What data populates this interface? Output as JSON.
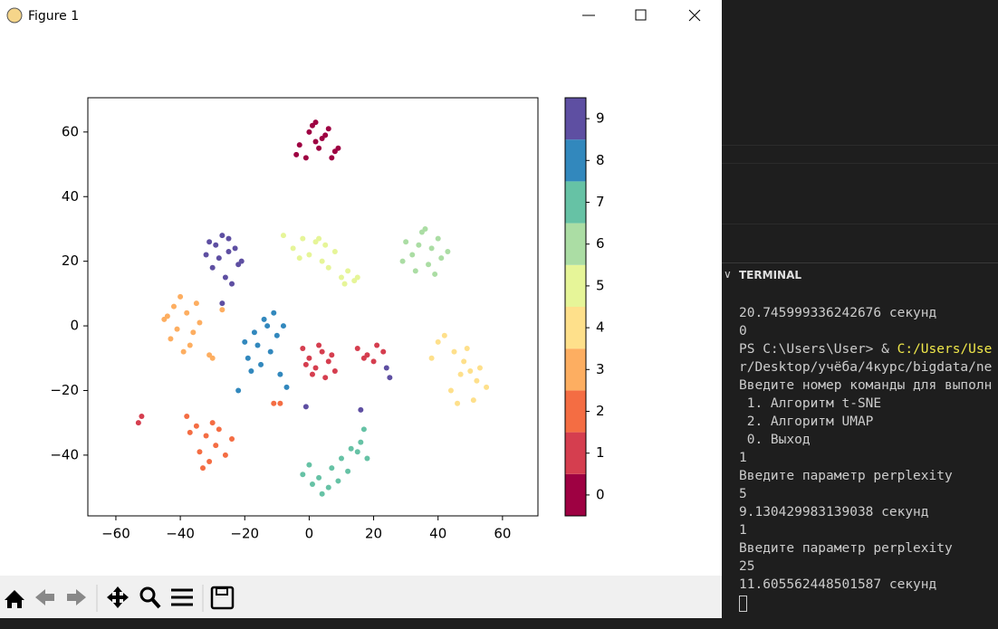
{
  "window": {
    "title": "Figure 1"
  },
  "chart_data": {
    "type": "scatter",
    "xlim": [
      -68.7,
      71
    ],
    "ylim": [
      -58.8,
      70.6
    ],
    "xticks": [
      {
        "value": -60,
        "label": "−60"
      },
      {
        "value": -40,
        "label": "−40"
      },
      {
        "value": -20,
        "label": "−20"
      },
      0,
      20,
      40,
      60
    ],
    "yticks": [
      {
        "value": -40,
        "label": "−40"
      },
      {
        "value": -20,
        "label": "−20"
      },
      0,
      20,
      40,
      60
    ],
    "colorbar": {
      "lim": [
        -0.5,
        9.5
      ],
      "ticks": [
        0,
        1,
        2,
        3,
        4,
        5,
        6,
        7,
        8,
        9
      ]
    },
    "series": [
      {
        "color": "#9e0142",
        "x": [
          -3,
          0,
          2,
          4,
          6,
          8,
          -1,
          3,
          5,
          7,
          1,
          -4,
          9,
          2
        ],
        "y": [
          56,
          60,
          63,
          58,
          61,
          54,
          52,
          55,
          59,
          52,
          62,
          53,
          55,
          57
        ]
      },
      {
        "color": "#d53e4f",
        "x": [
          -2,
          0,
          2,
          4,
          6,
          8,
          -1,
          3,
          7,
          1,
          5,
          15,
          18,
          21,
          23,
          17,
          20,
          -52,
          -53
        ],
        "y": [
          -7,
          -10,
          -13,
          -8,
          -11,
          -14,
          -12,
          -6,
          -9,
          -15,
          -16,
          -7,
          -9,
          -6,
          -8,
          -10,
          -11,
          -28,
          -30
        ]
      },
      {
        "color": "#f46d43",
        "x": [
          -38,
          -35,
          -32,
          -29,
          -26,
          -24,
          -37,
          -34,
          -31,
          -28,
          -33,
          -30,
          -11,
          -9
        ],
        "y": [
          -28,
          -31,
          -34,
          -37,
          -40,
          -35,
          -33,
          -39,
          -42,
          -32,
          -44,
          -30,
          -24,
          -24
        ]
      },
      {
        "color": "#fdae61",
        "x": [
          -45,
          -42,
          -40,
          -38,
          -36,
          -34,
          -43,
          -39,
          -37,
          -41,
          -44,
          -35,
          -31,
          -30,
          -27
        ],
        "y": [
          2,
          6,
          9,
          4,
          -2,
          1,
          -4,
          -8,
          -6,
          -1,
          3,
          7,
          -9,
          -10,
          5
        ]
      },
      {
        "color": "#fee08b",
        "x": [
          40,
          42,
          45,
          48,
          50,
          52,
          55,
          38,
          44,
          47,
          51,
          53,
          46,
          49
        ],
        "y": [
          -5,
          -3,
          -8,
          -11,
          -14,
          -17,
          -19,
          -10,
          -20,
          -15,
          -23,
          -13,
          -24,
          -7
        ]
      },
      {
        "color": "#e6f598",
        "x": [
          -8,
          -5,
          -2,
          0,
          2,
          4,
          6,
          8,
          10,
          12,
          14,
          3,
          -3,
          5,
          11,
          15
        ],
        "y": [
          28,
          24,
          27,
          22,
          26,
          20,
          18,
          23,
          15,
          17,
          14,
          27,
          21,
          25,
          13,
          15
        ]
      },
      {
        "color": "#abdda4",
        "x": [
          30,
          32,
          35,
          38,
          40,
          43,
          33,
          37,
          41,
          29,
          36,
          39,
          34
        ],
        "y": [
          26,
          22,
          29,
          24,
          27,
          23,
          17,
          19,
          21,
          20,
          30,
          16,
          25
        ]
      },
      {
        "color": "#66c2a5",
        "x": [
          -2,
          1,
          4,
          7,
          10,
          13,
          16,
          18,
          0,
          3,
          6,
          12,
          15,
          9,
          17
        ],
        "y": [
          -46,
          -49,
          -52,
          -44,
          -41,
          -38,
          -36,
          -41,
          -43,
          -47,
          -50,
          -45,
          -39,
          -48,
          -32
        ]
      },
      {
        "color": "#3288bd",
        "x": [
          -20,
          -17,
          -14,
          -11,
          -8,
          -19,
          -15,
          -12,
          -9,
          -16,
          -13,
          -10,
          -7,
          -18,
          -22
        ],
        "y": [
          -5,
          -2,
          2,
          4,
          0,
          -10,
          -12,
          -8,
          -15,
          -6,
          0,
          -3,
          -19,
          -14,
          -20
        ]
      },
      {
        "color": "#5e4fa2",
        "x": [
          -32,
          -29,
          -27,
          -25,
          -23,
          -22,
          -30,
          -26,
          -24,
          -28,
          -21,
          -31,
          -25,
          -27,
          24,
          25,
          16,
          -1
        ],
        "y": [
          22,
          25,
          28,
          27,
          24,
          19,
          18,
          15,
          13,
          21,
          20,
          26,
          23,
          7,
          -13,
          -16,
          -26,
          -25
        ]
      }
    ]
  },
  "terminal": {
    "header": "TERMINAL",
    "lines": [
      "20.745999336242676 секунд",
      "0",
      {
        "text": "PS C:\\Users\\User> & ",
        "highlight": "C:/Users/Use"
      },
      "r/Desktop/учёба/4курс/bigdata/ne",
      "Введите номер команды для выполн",
      " 1. Алгоритм t-SNE",
      " 2. Алгоритм UMAP",
      " 0. Выход",
      "1",
      "Введите параметр perplexity",
      "5",
      "9.130429983139038 секунд",
      "1",
      "Введите параметр perplexity",
      "25",
      "11.605562448501587 секунд"
    ]
  }
}
